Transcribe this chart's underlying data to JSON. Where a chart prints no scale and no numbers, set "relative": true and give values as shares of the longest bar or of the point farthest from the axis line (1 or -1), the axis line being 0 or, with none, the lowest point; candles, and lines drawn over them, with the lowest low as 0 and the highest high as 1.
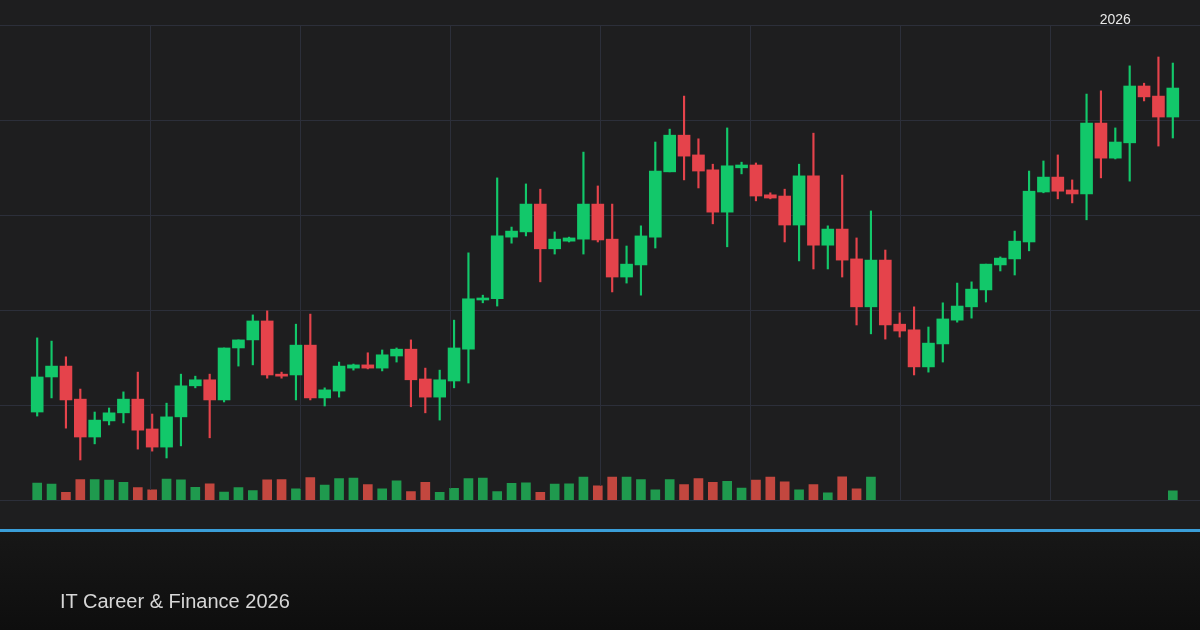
{
  "chart_data": [
    {
      "type": "candlestick",
      "relative": true,
      "grid": true,
      "categories": [
        null,
        null,
        null,
        null,
        null,
        null,
        null,
        null,
        null,
        null,
        null,
        null,
        null,
        null,
        null,
        null,
        null,
        null,
        null,
        null,
        null,
        null,
        null,
        null,
        null,
        null,
        null,
        null,
        null,
        null,
        null,
        null,
        null,
        null,
        null,
        null,
        null,
        null,
        null,
        null,
        null,
        null,
        null,
        null,
        null,
        null,
        null,
        null,
        null,
        null,
        null,
        null,
        null,
        null,
        null,
        null,
        null,
        null,
        null,
        null,
        null,
        null,
        null,
        null,
        null,
        null,
        null,
        null,
        null,
        null,
        null,
        null,
        null,
        null,
        null,
        "2026",
        null,
        null,
        null,
        null
      ],
      "ohlc": [
        [
          0.119,
          0.303,
          0.109,
          0.206
        ],
        [
          0.206,
          0.295,
          0.154,
          0.233
        ],
        [
          0.233,
          0.256,
          0.079,
          0.149
        ],
        [
          0.151,
          0.176,
          0,
          0.057
        ],
        [
          0.057,
          0.119,
          0.04,
          0.099
        ],
        [
          0.097,
          0.129,
          0.087,
          0.117
        ],
        [
          0.117,
          0.169,
          0.092,
          0.151
        ],
        [
          0.151,
          0.218,
          0.027,
          0.074
        ],
        [
          0.077,
          0.114,
          0.022,
          0.032
        ],
        [
          0.032,
          0.141,
          0.005,
          0.107
        ],
        [
          0.107,
          0.213,
          0.035,
          0.184
        ],
        [
          0.184,
          0.208,
          0.179,
          0.199
        ],
        [
          0.199,
          0.213,
          0.055,
          0.149
        ],
        [
          0.149,
          0.278,
          0.144,
          0.278
        ],
        [
          0.278,
          0.298,
          0.233,
          0.298
        ],
        [
          0.298,
          0.36,
          0.236,
          0.345
        ],
        [
          0.345,
          0.37,
          0.203,
          0.211
        ],
        [
          0.213,
          0.218,
          0.203,
          0.208
        ],
        [
          0.211,
          0.337,
          0.149,
          0.285
        ],
        [
          0.285,
          0.362,
          0.149,
          0.154
        ],
        [
          0.154,
          0.179,
          0.134,
          0.174
        ],
        [
          0.171,
          0.243,
          0.156,
          0.233
        ],
        [
          0.228,
          0.238,
          0.223,
          0.236
        ],
        [
          0.236,
          0.266,
          0.226,
          0.228
        ],
        [
          0.228,
          0.273,
          0.221,
          0.261
        ],
        [
          0.258,
          0.278,
          0.243,
          0.275
        ],
        [
          0.275,
          0.298,
          0.132,
          0.199
        ],
        [
          0.201,
          0.228,
          0.117,
          0.156
        ],
        [
          0.156,
          0.223,
          0.099,
          0.199
        ],
        [
          0.196,
          0.347,
          0.179,
          0.278
        ],
        [
          0.275,
          0.514,
          0.191,
          0.4
        ],
        [
          0.397,
          0.409,
          0.39,
          0.402
        ],
        [
          0.4,
          0.7,
          0.382,
          0.556
        ],
        [
          0.553,
          0.578,
          0.538,
          0.568
        ],
        [
          0.566,
          0.685,
          0.556,
          0.635
        ],
        [
          0.635,
          0.672,
          0.442,
          0.524
        ],
        [
          0.524,
          0.566,
          0.511,
          0.548
        ],
        [
          0.543,
          0.553,
          0.541,
          0.551
        ],
        [
          0.548,
          0.764,
          0.511,
          0.635
        ],
        [
          0.635,
          0.68,
          0.541,
          0.546
        ],
        [
          0.548,
          0.635,
          0.417,
          0.454
        ],
        [
          0.454,
          0.531,
          0.439,
          0.486
        ],
        [
          0.484,
          0.581,
          0.409,
          0.556
        ],
        [
          0.553,
          0.789,
          0.526,
          0.717
        ],
        [
          0.715,
          0.821,
          0.715,
          0.806
        ],
        [
          0.806,
          0.903,
          0.695,
          0.754
        ],
        [
          0.757,
          0.797,
          0.675,
          0.717
        ],
        [
          0.72,
          0.734,
          0.586,
          0.615
        ],
        [
          0.615,
          0.824,
          0.529,
          0.73
        ],
        [
          0.725,
          0.739,
          0.71,
          0.732
        ],
        [
          0.732,
          0.737,
          0.643,
          0.655
        ],
        [
          0.658,
          0.663,
          0.648,
          0.65
        ],
        [
          0.655,
          0.672,
          0.541,
          0.583
        ],
        [
          0.583,
          0.734,
          0.494,
          0.705
        ],
        [
          0.705,
          0.811,
          0.474,
          0.533
        ],
        [
          0.533,
          0.581,
          0.474,
          0.573
        ],
        [
          0.573,
          0.707,
          0.454,
          0.496
        ],
        [
          0.499,
          0.551,
          0.335,
          0.38
        ],
        [
          0.38,
          0.618,
          0.313,
          0.496
        ],
        [
          0.496,
          0.521,
          0.3,
          0.335
        ],
        [
          0.337,
          0.365,
          0.305,
          0.32
        ],
        [
          0.323,
          0.38,
          0.211,
          0.231
        ],
        [
          0.231,
          0.33,
          0.218,
          0.29
        ],
        [
          0.288,
          0.39,
          0.243,
          0.35
        ],
        [
          0.347,
          0.439,
          0.342,
          0.382
        ],
        [
          0.38,
          0.442,
          0.352,
          0.424
        ],
        [
          0.422,
          0.486,
          0.392,
          0.486
        ],
        [
          0.484,
          0.504,
          0.469,
          0.501
        ],
        [
          0.499,
          0.568,
          0.459,
          0.543
        ],
        [
          0.541,
          0.717,
          0.519,
          0.667
        ],
        [
          0.665,
          0.742,
          0.663,
          0.702
        ],
        [
          0.702,
          0.757,
          0.648,
          0.667
        ],
        [
          0.67,
          0.695,
          0.638,
          0.66
        ],
        [
          0.66,
          0.908,
          0.596,
          0.836
        ],
        [
          0.836,
          0.916,
          0.7,
          0.749
        ],
        [
          0.749,
          0.824,
          0.747,
          0.789
        ],
        [
          0.787,
          0.978,
          0.692,
          0.928
        ],
        [
          0.928,
          0.935,
          0.891,
          0.901
        ],
        [
          0.903,
          1,
          0.779,
          0.851
        ],
        [
          0.851,
          0.985,
          0.799,
          0.923
        ]
      ],
      "colors": [
        "#12c86a",
        "#12c86a",
        "#e5434b",
        "#e5434b",
        "#12c86a",
        "#12c86a",
        "#12c86a",
        "#e5434b",
        "#e5434b",
        "#12c86a",
        "#12c86a",
        "#12c86a",
        "#e5434b",
        "#12c86a",
        "#12c86a",
        "#12c86a",
        "#e5434b",
        "#e5434b",
        "#12c86a",
        "#e5434b",
        "#12c86a",
        "#12c86a",
        "#12c86a",
        "#e5434b",
        "#12c86a",
        "#12c86a",
        "#e5434b",
        "#e5434b",
        "#12c86a",
        "#12c86a",
        "#12c86a",
        "#12c86a",
        "#12c86a",
        "#12c86a",
        "#12c86a",
        "#e5434b",
        "#12c86a",
        "#12c86a",
        "#12c86a",
        "#e5434b",
        "#e5434b",
        "#12c86a",
        "#12c86a",
        "#12c86a",
        "#12c86a",
        "#e5434b",
        "#e5434b",
        "#e5434b",
        "#12c86a",
        "#12c86a",
        "#e5434b",
        "#e5434b",
        "#e5434b",
        "#12c86a",
        "#e5434b",
        "#12c86a",
        "#e5434b",
        "#e5434b",
        "#12c86a",
        "#e5434b",
        "#e5434b",
        "#e5434b",
        "#12c86a",
        "#12c86a",
        "#12c86a",
        "#12c86a",
        "#12c86a",
        "#12c86a",
        "#12c86a",
        "#12c86a",
        "#12c86a",
        "#e5434b",
        "#e5434b",
        "#12c86a",
        "#e5434b",
        "#12c86a",
        "#12c86a",
        "#e5434b",
        "#e5434b",
        "#12c86a"
      ],
      "annotations": [
        "IT Career & Finance 2026"
      ]
    },
    {
      "type": "bar",
      "relative": true,
      "categories": [
        null,
        null,
        null,
        null,
        null,
        null,
        null,
        null,
        null,
        null,
        null,
        null,
        null,
        null,
        null,
        null,
        null,
        null,
        null,
        null,
        null,
        null,
        null,
        null,
        null,
        null,
        null,
        null,
        null,
        null,
        null,
        null,
        null,
        null,
        null,
        null,
        null,
        null,
        null,
        null,
        null,
        null,
        null,
        null,
        null,
        null,
        null,
        null,
        null,
        null,
        null,
        null,
        null,
        null,
        null,
        null,
        null,
        null,
        null,
        null,
        null,
        null,
        null,
        null,
        null,
        null,
        null,
        null,
        null,
        null,
        null,
        null,
        null,
        null,
        null,
        null,
        null,
        null,
        null,
        null
      ],
      "values": [
        0.72,
        0.67,
        0.32,
        0.87,
        0.87,
        0.84,
        0.75,
        0.53,
        0.43,
        0.89,
        0.85,
        0.54,
        0.69,
        0.34,
        0.53,
        0.4,
        0.85,
        0.87,
        0.47,
        0.95,
        0.63,
        0.91,
        0.93,
        0.65,
        0.47,
        0.81,
        0.36,
        0.75,
        0.32,
        0.49,
        0.91,
        0.93,
        0.36,
        0.71,
        0.73,
        0.32,
        0.67,
        0.69,
        0.98,
        0.6,
        0.98,
        0.98,
        0.87,
        0.43,
        0.87,
        0.65,
        0.91,
        0.75,
        0.79,
        0.5,
        0.84,
        0.98,
        0.77,
        0.43,
        0.65,
        0.3,
        1,
        0.47,
        0.98,
        null,
        null,
        null,
        null,
        null,
        null,
        null,
        null,
        null,
        null,
        null,
        null,
        null,
        null,
        null,
        null,
        null,
        null,
        null,
        null,
        0.39
      ],
      "colors": [
        "#1f9a4e",
        "#1f9a4e",
        "#c3473f",
        "#c3473f",
        "#1f9a4e",
        "#1f9a4e",
        "#1f9a4e",
        "#c3473f",
        "#c3473f",
        "#1f9a4e",
        "#1f9a4e",
        "#1f9a4e",
        "#c3473f",
        "#1f9a4e",
        "#1f9a4e",
        "#1f9a4e",
        "#c3473f",
        "#c3473f",
        "#1f9a4e",
        "#c3473f",
        "#1f9a4e",
        "#1f9a4e",
        "#1f9a4e",
        "#c3473f",
        "#1f9a4e",
        "#1f9a4e",
        "#c3473f",
        "#c3473f",
        "#1f9a4e",
        "#1f9a4e",
        "#1f9a4e",
        "#1f9a4e",
        "#1f9a4e",
        "#1f9a4e",
        "#1f9a4e",
        "#c3473f",
        "#1f9a4e",
        "#1f9a4e",
        "#1f9a4e",
        "#c3473f",
        "#c3473f",
        "#1f9a4e",
        "#1f9a4e",
        "#1f9a4e",
        "#1f9a4e",
        "#c3473f",
        "#c3473f",
        "#c3473f",
        "#1f9a4e",
        "#1f9a4e",
        "#c3473f",
        "#c3473f",
        "#c3473f",
        "#1f9a4e",
        "#c3473f",
        "#1f9a4e",
        "#c3473f",
        "#c3473f",
        "#1f9a4e",
        null,
        null,
        null,
        null,
        null,
        null,
        null,
        null,
        null,
        null,
        null,
        null,
        null,
        null,
        null,
        null,
        null,
        null,
        null,
        null,
        "#1f9a4e"
      ]
    }
  ]
}
